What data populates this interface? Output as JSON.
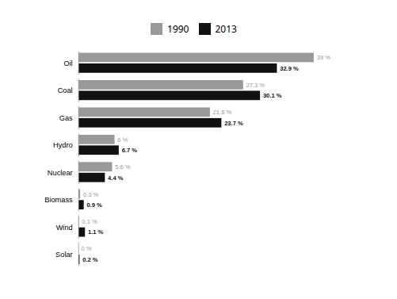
{
  "chart_data": {
    "type": "bar",
    "orientation": "horizontal",
    "categories": [
      "Oil",
      "Coal",
      "Gas",
      "Hydro",
      "Nuclear",
      "Biomass",
      "Wind",
      "Solar"
    ],
    "series": [
      {
        "name": "1990",
        "color": "#999999",
        "values": [
          39.0,
          27.3,
          21.8,
          6.0,
          5.6,
          0.3,
          0.1,
          0.0
        ],
        "value_labels": [
          "39 %",
          "27.3 %",
          "21.8 %",
          "6 %",
          "5.6 %",
          "0.3 %",
          "0.1 %",
          "0 %"
        ]
      },
      {
        "name": "2013",
        "color": "#111111",
        "values": [
          32.9,
          30.1,
          23.7,
          6.7,
          4.4,
          0.9,
          1.1,
          0.2
        ],
        "value_labels": [
          "32.9 %",
          "30.1 %",
          "23.7 %",
          "6.7 %",
          "4.4 %",
          "0.9 %",
          "1.1 %",
          "0.2 %"
        ]
      }
    ],
    "xlim": [
      0,
      46
    ],
    "data_labels": true,
    "tick_labels": "y",
    "legend": "top",
    "grid": false
  }
}
